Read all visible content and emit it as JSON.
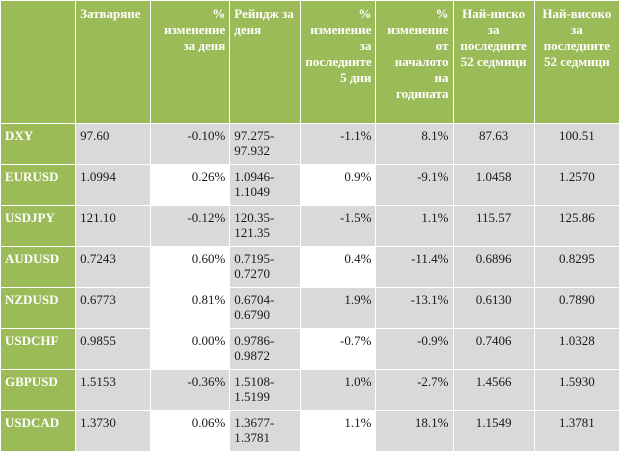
{
  "headers": [
    "",
    "Затваряне",
    "% изменение за деня",
    "Рейндж за деня",
    "% изменение за последните 5 дни",
    "% изменение от началото на годината",
    "Най-ниско за последните 52 седмици",
    "Най-високо за последните 52 седмици"
  ],
  "rows": [
    {
      "pair": "DXY",
      "close": "97.60",
      "day_change": "-0.10%",
      "range_low": "97.275-",
      "range_high": "97.932",
      "change_5d": "-1.1%",
      "ytd": "8.1%",
      "low_52w": "87.63",
      "high_52w": "100.51"
    },
    {
      "pair": "EURUSD",
      "close": "1.0994",
      "day_change": "0.26%",
      "range_low": "1.0946-",
      "range_high": "1.1049",
      "change_5d": "0.9%",
      "ytd": "-9.1%",
      "low_52w": "1.0458",
      "high_52w": "1.2570"
    },
    {
      "pair": "USDJPY",
      "close": "121.10",
      "day_change": "-0.12%",
      "range_low": "120.35-",
      "range_high": "121.35",
      "change_5d": "-1.5%",
      "ytd": "1.1%",
      "low_52w": "115.57",
      "high_52w": "125.86"
    },
    {
      "pair": "AUDUSD",
      "close": "0.7243",
      "day_change": "0.60%",
      "range_low": "0.7195-",
      "range_high": "0.7270",
      "change_5d": "0.4%",
      "ytd": "-11.4%",
      "low_52w": "0.6896",
      "high_52w": "0.8295"
    },
    {
      "pair": "NZDUSD",
      "close": "0.6773",
      "day_change": "0.81%",
      "range_low": "0.6704-",
      "range_high": "0.6790",
      "change_5d": "1.9%",
      "ytd": "-13.1%",
      "low_52w": "0.6130",
      "high_52w": "0.7890"
    },
    {
      "pair": "USDCHF",
      "close": "0.9855",
      "day_change": "0.00%",
      "range_low": "0.9786-",
      "range_high": "0.9872",
      "change_5d": "-0.7%",
      "ytd": "-0.9%",
      "low_52w": "0.7406",
      "high_52w": "1.0328"
    },
    {
      "pair": "GBPUSD",
      "close": "1.5153",
      "day_change": "-0.36%",
      "range_low": "1.5108-",
      "range_high": "1.5199",
      "change_5d": "1.0%",
      "ytd": "-2.7%",
      "low_52w": "1.4566",
      "high_52w": "1.5930"
    },
    {
      "pair": "USDCAD",
      "close": "1.3730",
      "day_change": "0.06%",
      "range_low": "1.3677-",
      "range_high": "1.3781",
      "change_5d": "1.1%",
      "ytd": "18.1%",
      "low_52w": "1.1549",
      "high_52w": "1.3781"
    }
  ],
  "colors": {
    "header_green": "#9bbb59",
    "cell_gray": "#d9d9d9",
    "cell_white": "#ffffff"
  }
}
